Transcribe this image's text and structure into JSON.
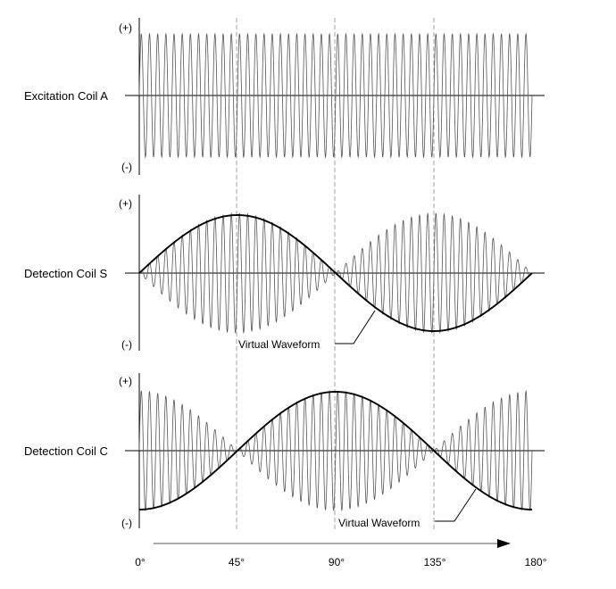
{
  "panels": [
    {
      "label": "Excitation Coil A",
      "plus": "(+)",
      "minus": "(-)"
    },
    {
      "label": "Detection Coil S",
      "plus": "(+)",
      "minus": "(-)",
      "callout": "Virtual Waveform"
    },
    {
      "label": "Detection Coil C",
      "plus": "(+)",
      "minus": "(-)",
      "callout": "Virtual Waveform"
    }
  ],
  "angle_ticks": [
    "0°",
    "45°",
    "90°",
    "135°",
    "180°"
  ],
  "carrier_cycles": 48,
  "colors": {
    "line": "#000000",
    "carrier": "#555555",
    "guide": "#8a8a8a"
  }
}
